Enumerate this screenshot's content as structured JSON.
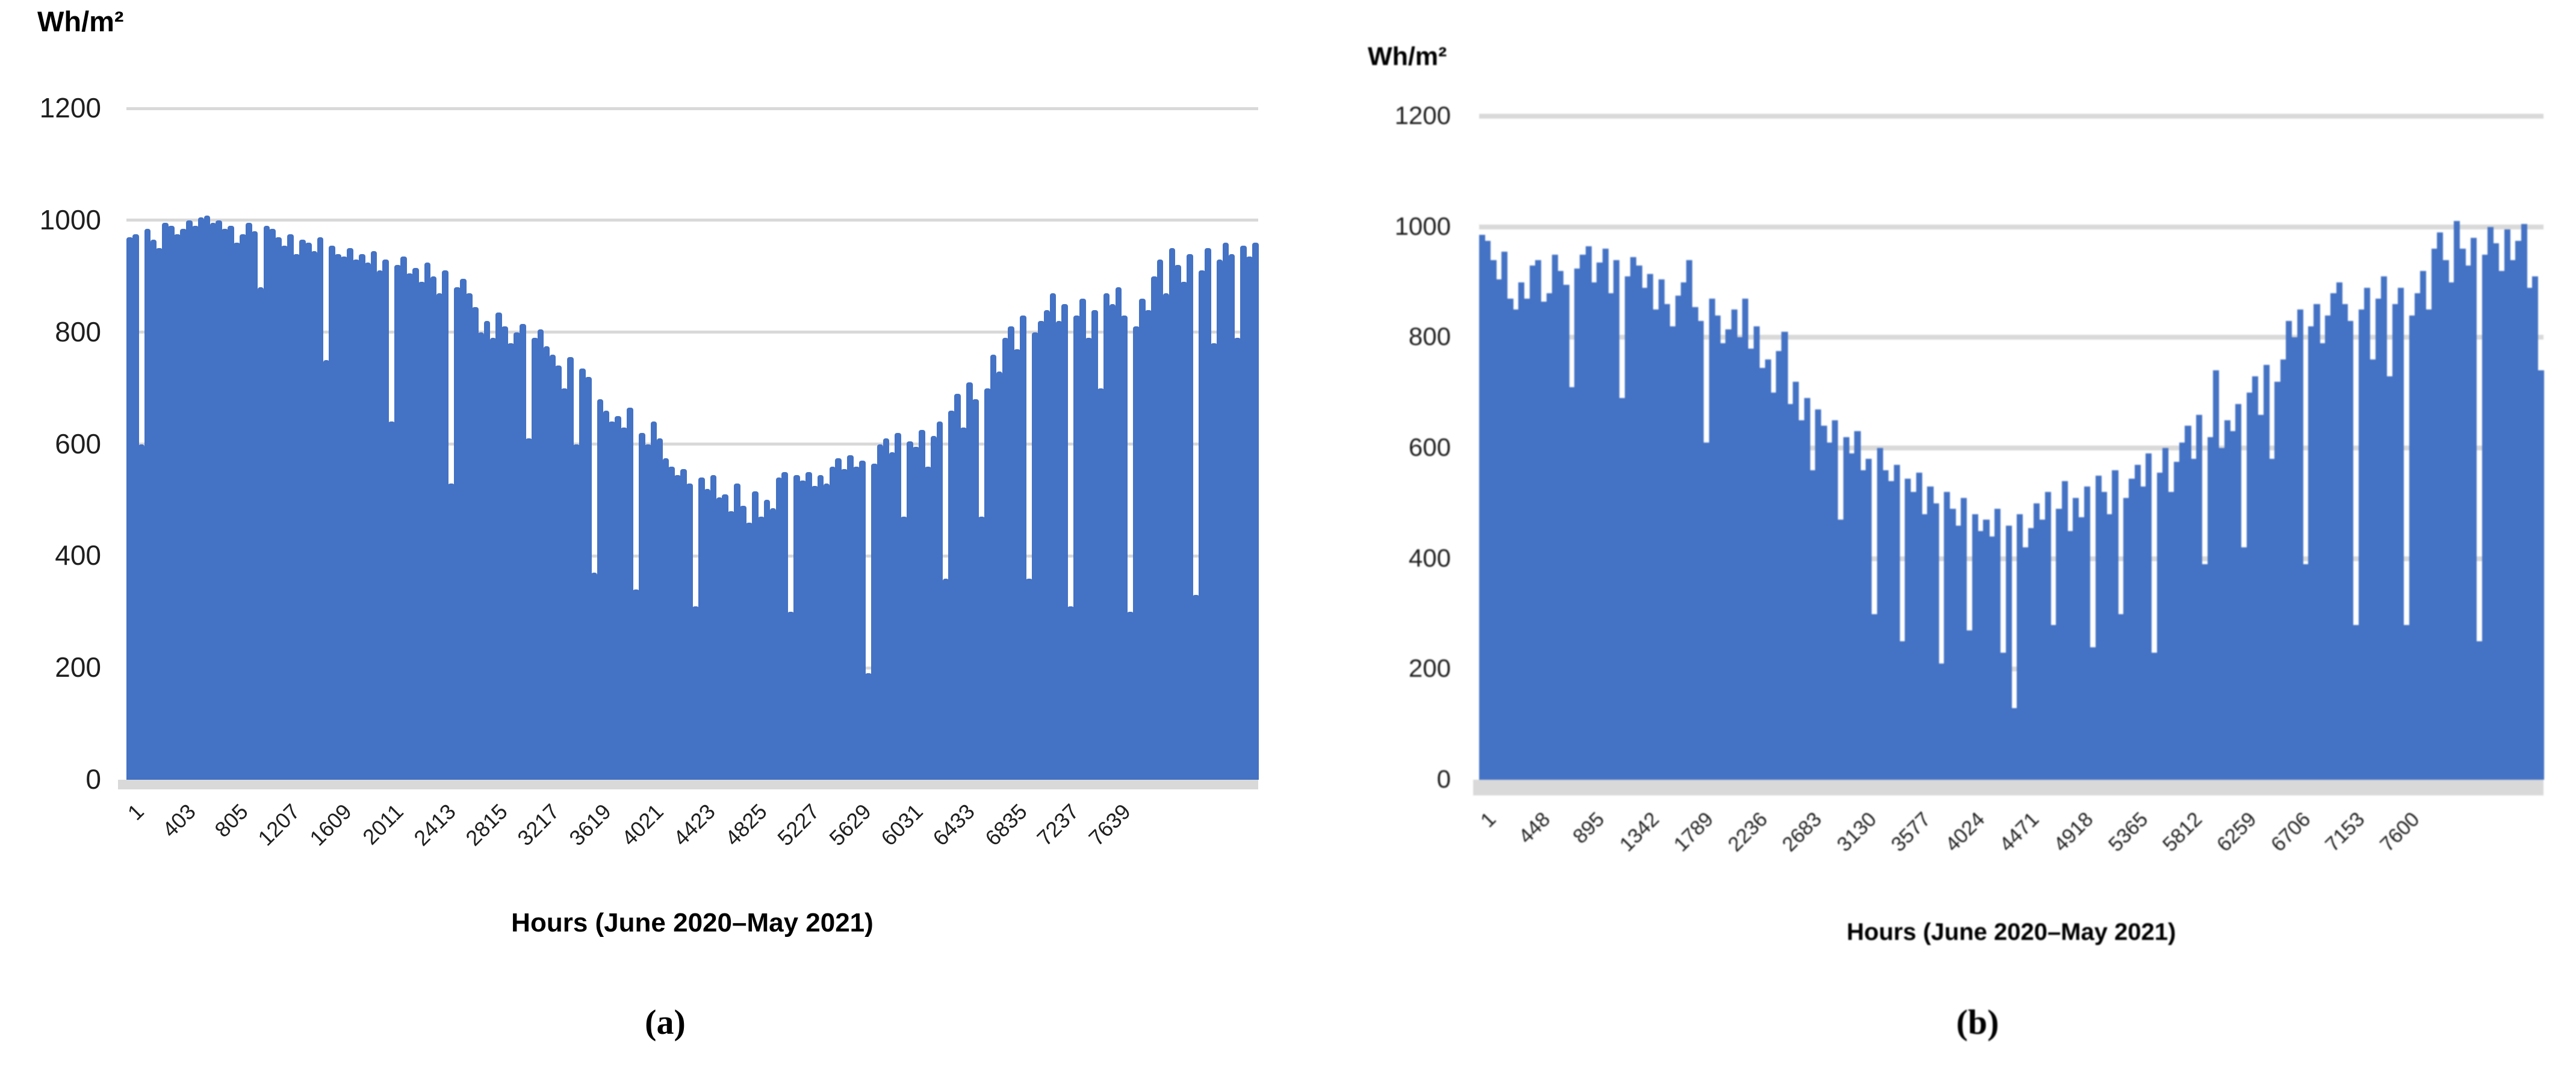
{
  "figure": {
    "panels": [
      {
        "caption": "(a)",
        "unit_label": "Wh/m²",
        "x_axis_title": "Hours (June 2020–May 2021)"
      },
      {
        "caption": "(b)",
        "unit_label": "Wh/m²",
        "x_axis_title": "Hours (June 2020–May 2021)"
      }
    ]
  },
  "chart_data": [
    {
      "type": "bar",
      "panel": "a",
      "ylabel": "Wh/m²",
      "xlabel": "Hours (June 2020–May 2021)",
      "ylim": [
        0,
        1200
      ],
      "y_ticks": [
        0,
        200,
        400,
        600,
        800,
        1000,
        1200
      ],
      "x_range_hours": [
        1,
        8760
      ],
      "x_tick_labels": [
        "1",
        "403",
        "805",
        "1207",
        "1609",
        "2011",
        "2413",
        "2815",
        "3217",
        "3619",
        "4021",
        "4423",
        "4825",
        "5227",
        "5629",
        "6031",
        "6433",
        "6835",
        "7237",
        "7639"
      ],
      "bar_color": "#4472C4",
      "gridline_color": "#D9D9D9",
      "grid": true,
      "legend_position": "none",
      "values": [
        970,
        975,
        600,
        985,
        965,
        950,
        995,
        990,
        975,
        985,
        1000,
        990,
        1005,
        1008,
        995,
        1000,
        985,
        990,
        960,
        975,
        995,
        980,
        880,
        990,
        985,
        970,
        955,
        975,
        940,
        965,
        960,
        945,
        970,
        750,
        955,
        940,
        935,
        950,
        930,
        940,
        925,
        945,
        910,
        930,
        640,
        920,
        935,
        905,
        915,
        890,
        925,
        900,
        870,
        910,
        530,
        880,
        895,
        870,
        845,
        800,
        820,
        790,
        835,
        810,
        780,
        800,
        815,
        610,
        790,
        805,
        775,
        760,
        740,
        700,
        755,
        600,
        735,
        720,
        370,
        680,
        660,
        640,
        650,
        630,
        665,
        340,
        620,
        600,
        640,
        610,
        575,
        560,
        545,
        555,
        530,
        310,
        540,
        520,
        545,
        505,
        510,
        480,
        530,
        490,
        460,
        515,
        470,
        500,
        485,
        540,
        550,
        300,
        545,
        535,
        550,
        525,
        545,
        530,
        560,
        575,
        555,
        580,
        560,
        570,
        190,
        565,
        600,
        610,
        585,
        620,
        470,
        605,
        595,
        625,
        560,
        615,
        640,
        360,
        660,
        690,
        630,
        710,
        680,
        470,
        700,
        760,
        730,
        790,
        810,
        770,
        830,
        360,
        800,
        820,
        840,
        870,
        820,
        850,
        310,
        830,
        860,
        790,
        840,
        700,
        870,
        850,
        880,
        830,
        300,
        810,
        860,
        840,
        900,
        930,
        870,
        950,
        920,
        890,
        940,
        330,
        910,
        950,
        780,
        930,
        960,
        940,
        790,
        955,
        935,
        960
      ]
    },
    {
      "type": "bar",
      "panel": "b",
      "ylabel": "Wh/m²",
      "xlabel": "Hours (June 2020–May 2021)",
      "ylim": [
        0,
        1200
      ],
      "y_ticks": [
        0,
        200,
        400,
        600,
        800,
        1000,
        1200
      ],
      "x_range_hours": [
        1,
        8760
      ],
      "x_tick_labels": [
        "1",
        "448",
        "895",
        "1342",
        "1789",
        "2236",
        "2683",
        "3130",
        "3577",
        "4024",
        "4471",
        "4918",
        "5365",
        "5812",
        "6259",
        "6706",
        "7153",
        "7600"
      ],
      "bar_color": "#4472C4",
      "gridline_color": "#D9D9D9",
      "grid": true,
      "legend_position": "none",
      "values": [
        985,
        975,
        940,
        905,
        955,
        870,
        850,
        900,
        870,
        930,
        940,
        865,
        880,
        950,
        920,
        895,
        710,
        925,
        950,
        965,
        900,
        935,
        960,
        880,
        940,
        690,
        910,
        945,
        930,
        890,
        915,
        850,
        905,
        860,
        820,
        875,
        900,
        940,
        855,
        830,
        610,
        870,
        840,
        790,
        815,
        850,
        800,
        870,
        780,
        820,
        745,
        760,
        700,
        775,
        810,
        680,
        720,
        650,
        690,
        560,
        670,
        640,
        610,
        650,
        470,
        620,
        590,
        630,
        560,
        580,
        300,
        600,
        560,
        540,
        570,
        250,
        545,
        520,
        555,
        480,
        530,
        500,
        210,
        520,
        490,
        460,
        510,
        270,
        480,
        450,
        470,
        440,
        490,
        230,
        460,
        130,
        480,
        420,
        455,
        500,
        470,
        520,
        280,
        490,
        540,
        450,
        510,
        475,
        530,
        240,
        550,
        520,
        480,
        560,
        300,
        510,
        545,
        570,
        530,
        590,
        230,
        555,
        600,
        520,
        575,
        610,
        640,
        580,
        660,
        390,
        620,
        740,
        600,
        650,
        630,
        680,
        420,
        700,
        730,
        660,
        750,
        580,
        720,
        760,
        830,
        800,
        850,
        390,
        820,
        860,
        790,
        840,
        880,
        900,
        860,
        830,
        280,
        850,
        890,
        760,
        870,
        910,
        730,
        860,
        890,
        280,
        840,
        880,
        920,
        850,
        960,
        990,
        940,
        900,
        1010,
        960,
        930,
        980,
        250,
        950,
        1000,
        970,
        920,
        995,
        940,
        975,
        1005,
        890,
        910,
        740
      ]
    }
  ]
}
